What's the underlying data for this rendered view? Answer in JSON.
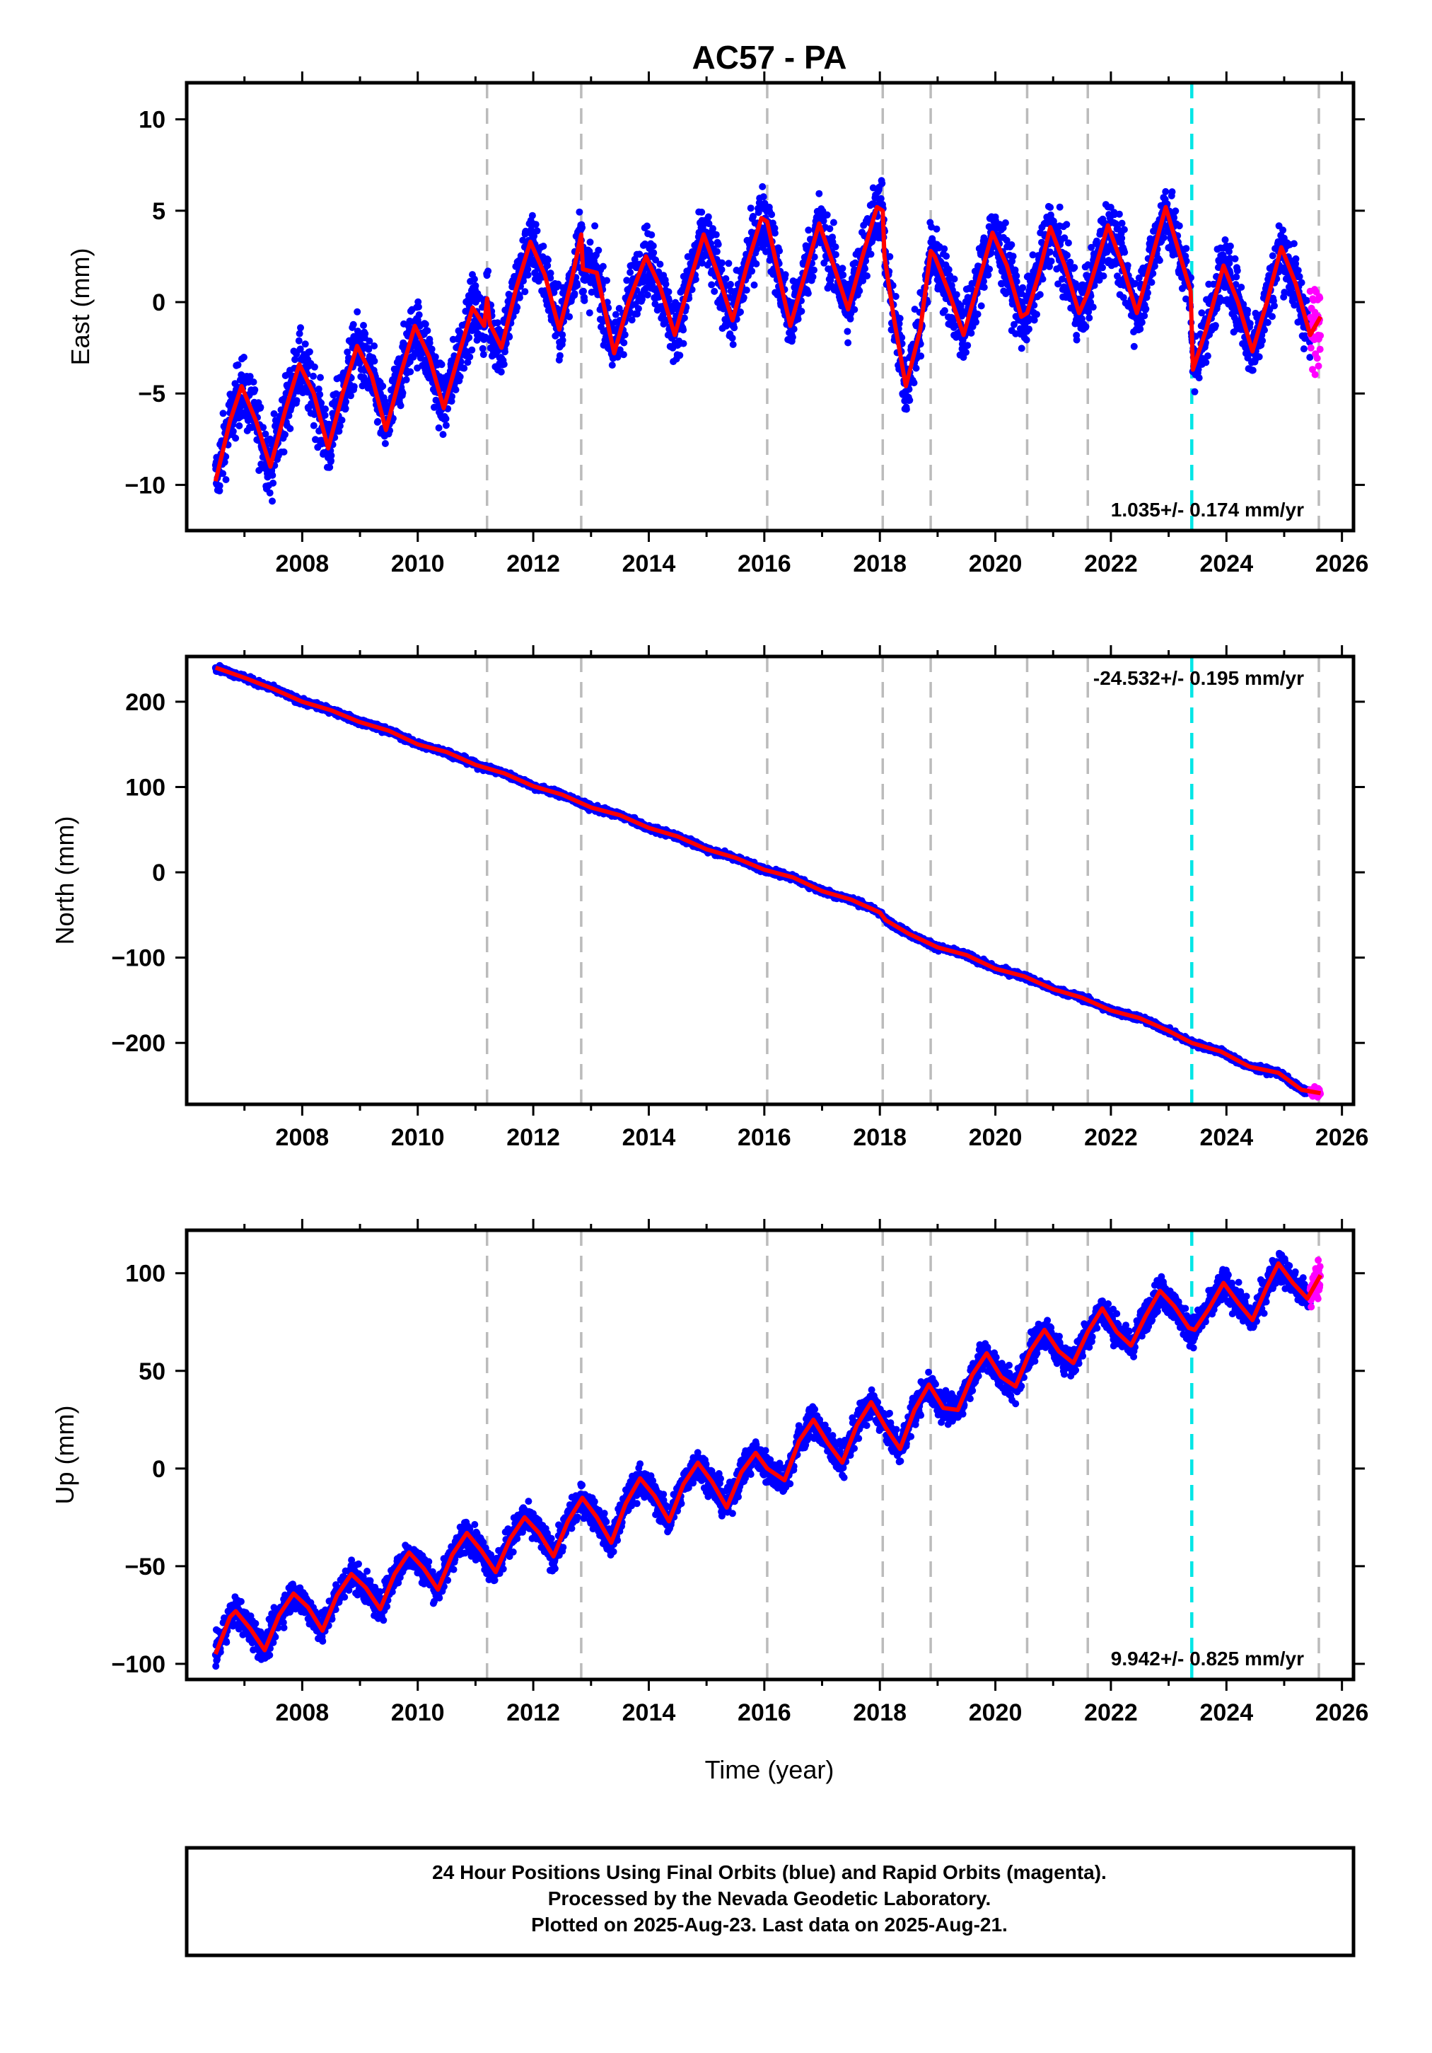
{
  "title": "AC57 - PA",
  "xlabel": "Time (year)",
  "x_ticks": [
    "2008",
    "2010",
    "2012",
    "2014",
    "2016",
    "2018",
    "2020",
    "2022",
    "2024",
    "2026"
  ],
  "colors": {
    "final_orbit_points": "#0000ff",
    "rapid_orbit_points": "#ff00ff",
    "model_fit": "#ff0000",
    "equipment_change": "#bbbbbb",
    "earthquake_offset": "#00e6e6"
  },
  "footer": {
    "line1": "24 Hour Positions Using Final Orbits (blue) and Rapid Orbits (magenta).",
    "line2": "Processed by the Nevada Geodetic Laboratory.",
    "line3": "Plotted on 2025-Aug-23. Last data on 2025-Aug-21."
  },
  "chart_data": [
    {
      "type": "scatter",
      "panel": "east",
      "ylabel": "East (mm)",
      "xlim": [
        2006.0,
        2026.2
      ],
      "ylim": [
        -12.5,
        12
      ],
      "y_ticks": [
        "−10",
        "−5",
        "0",
        "5",
        "10"
      ],
      "y_tick_values": [
        -10,
        -5,
        0,
        5,
        10
      ],
      "rate_label": "1.035+/- 0.174 mm/yr",
      "rate_position": "bottom-right",
      "grid": false,
      "data_span": [
        2006.5,
        2025.63
      ],
      "rapid_span": [
        2025.45,
        2025.63
      ],
      "equipment_change_years": [
        2011.2,
        2012.83,
        2016.05,
        2018.05,
        2018.88,
        2020.55,
        2021.6,
        2025.6
      ],
      "earthquake_years": [
        2023.4
      ],
      "model_curve": [
        [
          2006.5,
          -9.8
        ],
        [
          2006.75,
          -6.5
        ],
        [
          2006.95,
          -4.6
        ],
        [
          2007.2,
          -6.5
        ],
        [
          2007.45,
          -9.0
        ],
        [
          2007.7,
          -6.0
        ],
        [
          2007.95,
          -3.4
        ],
        [
          2008.2,
          -5.0
        ],
        [
          2008.45,
          -8.0
        ],
        [
          2008.7,
          -5.0
        ],
        [
          2008.95,
          -2.4
        ],
        [
          2009.2,
          -4.0
        ],
        [
          2009.45,
          -7.0
        ],
        [
          2009.7,
          -4.0
        ],
        [
          2009.95,
          -1.3
        ],
        [
          2010.2,
          -3.0
        ],
        [
          2010.45,
          -5.8
        ],
        [
          2010.7,
          -3.0
        ],
        [
          2010.95,
          -0.3
        ],
        [
          2011.15,
          -1.3
        ],
        [
          2011.2,
          0.2
        ],
        [
          2011.25,
          -1.2
        ],
        [
          2011.45,
          -2.5
        ],
        [
          2011.7,
          0.7
        ],
        [
          2011.95,
          3.3
        ],
        [
          2012.2,
          1.5
        ],
        [
          2012.45,
          -1.5
        ],
        [
          2012.65,
          1.0
        ],
        [
          2012.83,
          3.7
        ],
        [
          2012.86,
          1.8
        ],
        [
          2013.1,
          1.6
        ],
        [
          2013.4,
          -2.8
        ],
        [
          2013.65,
          0.0
        ],
        [
          2013.95,
          2.5
        ],
        [
          2014.2,
          0.8
        ],
        [
          2014.45,
          -1.8
        ],
        [
          2014.7,
          1.0
        ],
        [
          2014.95,
          3.7
        ],
        [
          2015.2,
          1.5
        ],
        [
          2015.45,
          -1.0
        ],
        [
          2015.7,
          2.0
        ],
        [
          2015.95,
          4.6
        ],
        [
          2016.05,
          4.4
        ],
        [
          2016.25,
          1.5
        ],
        [
          2016.45,
          -1.3
        ],
        [
          2016.7,
          1.5
        ],
        [
          2016.95,
          4.3
        ],
        [
          2017.2,
          2.0
        ],
        [
          2017.45,
          -0.4
        ],
        [
          2017.7,
          2.5
        ],
        [
          2017.95,
          5.2
        ],
        [
          2018.05,
          5.0
        ],
        [
          2018.08,
          2.5
        ],
        [
          2018.25,
          -1.0
        ],
        [
          2018.45,
          -4.6
        ],
        [
          2018.7,
          -1.5
        ],
        [
          2018.88,
          2.8
        ],
        [
          2018.95,
          2.5
        ],
        [
          2019.2,
          0.5
        ],
        [
          2019.45,
          -1.8
        ],
        [
          2019.7,
          1.0
        ],
        [
          2019.95,
          3.8
        ],
        [
          2020.2,
          2.0
        ],
        [
          2020.45,
          -0.8
        ],
        [
          2020.55,
          -0.6
        ],
        [
          2020.75,
          1.5
        ],
        [
          2020.95,
          4.1
        ],
        [
          2021.2,
          2.0
        ],
        [
          2021.45,
          -0.6
        ],
        [
          2021.6,
          0.5
        ],
        [
          2021.95,
          4.2
        ],
        [
          2022.2,
          2.0
        ],
        [
          2022.45,
          -0.6
        ],
        [
          2022.7,
          2.3
        ],
        [
          2022.95,
          5.2
        ],
        [
          2023.2,
          2.5
        ],
        [
          2023.38,
          0.6
        ],
        [
          2023.42,
          -3.7
        ],
        [
          2023.65,
          -1.5
        ],
        [
          2023.95,
          2.0
        ],
        [
          2024.2,
          0.0
        ],
        [
          2024.45,
          -2.7
        ],
        [
          2024.7,
          0.0
        ],
        [
          2024.95,
          3.0
        ],
        [
          2025.2,
          1.0
        ],
        [
          2025.45,
          -1.8
        ],
        [
          2025.63,
          -0.8
        ]
      ]
    },
    {
      "type": "scatter",
      "panel": "north",
      "ylabel": "North (mm)",
      "xlim": [
        2006.0,
        2026.2
      ],
      "ylim": [
        -272,
        253
      ],
      "y_ticks": [
        "−200",
        "−100",
        "0",
        "100",
        "200"
      ],
      "y_tick_values": [
        -200,
        -100,
        0,
        100,
        200
      ],
      "rate_label": "-24.532+/- 0.195 mm/yr",
      "rate_position": "top-right",
      "grid": false,
      "data_span": [
        2006.5,
        2025.63
      ],
      "rapid_span": [
        2025.45,
        2025.63
      ],
      "equipment_change_years": [
        2011.2,
        2012.83,
        2016.05,
        2018.05,
        2018.88,
        2020.55,
        2021.6,
        2025.6
      ],
      "earthquake_years": [
        2023.4
      ],
      "model_curve": [
        [
          2006.5,
          240
        ],
        [
          2007.0,
          228
        ],
        [
          2007.5,
          215
        ],
        [
          2008.0,
          200
        ],
        [
          2008.5,
          190
        ],
        [
          2009.0,
          176
        ],
        [
          2009.5,
          166
        ],
        [
          2010.0,
          150
        ],
        [
          2010.5,
          141
        ],
        [
          2011.0,
          126
        ],
        [
          2011.5,
          116
        ],
        [
          2012.0,
          101
        ],
        [
          2012.5,
          91
        ],
        [
          2013.0,
          76
        ],
        [
          2013.5,
          67
        ],
        [
          2014.0,
          52
        ],
        [
          2014.5,
          42
        ],
        [
          2015.0,
          27
        ],
        [
          2015.5,
          17
        ],
        [
          2016.0,
          3
        ],
        [
          2016.5,
          -6
        ],
        [
          2017.0,
          -22
        ],
        [
          2017.5,
          -32
        ],
        [
          2018.0,
          -47
        ],
        [
          2018.1,
          -56
        ],
        [
          2018.5,
          -72
        ],
        [
          2019.0,
          -88
        ],
        [
          2019.5,
          -97
        ],
        [
          2020.0,
          -113
        ],
        [
          2020.5,
          -122
        ],
        [
          2021.0,
          -137
        ],
        [
          2021.5,
          -147
        ],
        [
          2022.0,
          -162
        ],
        [
          2022.5,
          -171
        ],
        [
          2023.0,
          -186
        ],
        [
          2023.4,
          -200
        ],
        [
          2023.9,
          -210
        ],
        [
          2024.4,
          -228
        ],
        [
          2024.9,
          -235
        ],
        [
          2025.3,
          -255
        ],
        [
          2025.63,
          -259
        ]
      ]
    },
    {
      "type": "scatter",
      "panel": "up",
      "ylabel": "Up (mm)",
      "xlim": [
        2006.0,
        2026.2
      ],
      "ylim": [
        -108,
        122
      ],
      "y_ticks": [
        "−100",
        "−50",
        "0",
        "50",
        "100"
      ],
      "y_tick_values": [
        -100,
        -50,
        0,
        50,
        100
      ],
      "rate_label": "9.942+/- 0.825 mm/yr",
      "rate_position": "bottom-right",
      "grid": false,
      "data_span": [
        2006.5,
        2025.63
      ],
      "rapid_span": [
        2025.45,
        2025.63
      ],
      "equipment_change_years": [
        2011.2,
        2012.83,
        2016.05,
        2018.05,
        2018.88,
        2020.55,
        2021.6,
        2025.6
      ],
      "earthquake_years": [
        2023.4
      ],
      "model_curve": [
        [
          2006.5,
          -95
        ],
        [
          2006.75,
          -76
        ],
        [
          2006.85,
          -73
        ],
        [
          2007.1,
          -82
        ],
        [
          2007.35,
          -93
        ],
        [
          2007.6,
          -75
        ],
        [
          2007.85,
          -64
        ],
        [
          2008.1,
          -71
        ],
        [
          2008.35,
          -83
        ],
        [
          2008.6,
          -65
        ],
        [
          2008.85,
          -54
        ],
        [
          2009.1,
          -61
        ],
        [
          2009.35,
          -72
        ],
        [
          2009.6,
          -54
        ],
        [
          2009.85,
          -43
        ],
        [
          2010.1,
          -51
        ],
        [
          2010.35,
          -62
        ],
        [
          2010.6,
          -44
        ],
        [
          2010.85,
          -33
        ],
        [
          2011.1,
          -42
        ],
        [
          2011.35,
          -53
        ],
        [
          2011.6,
          -36
        ],
        [
          2011.85,
          -25
        ],
        [
          2012.1,
          -33
        ],
        [
          2012.35,
          -45
        ],
        [
          2012.6,
          -27
        ],
        [
          2012.85,
          -15
        ],
        [
          2013.1,
          -25
        ],
        [
          2013.35,
          -38
        ],
        [
          2013.6,
          -18
        ],
        [
          2013.85,
          -5
        ],
        [
          2014.1,
          -14
        ],
        [
          2014.35,
          -27
        ],
        [
          2014.6,
          -8
        ],
        [
          2014.85,
          3
        ],
        [
          2015.1,
          -7
        ],
        [
          2015.35,
          -20
        ],
        [
          2015.6,
          -2
        ],
        [
          2015.85,
          8
        ],
        [
          2016.05,
          0
        ],
        [
          2016.35,
          -6
        ],
        [
          2016.6,
          14
        ],
        [
          2016.85,
          25
        ],
        [
          2017.1,
          13
        ],
        [
          2017.35,
          3
        ],
        [
          2017.6,
          22
        ],
        [
          2017.85,
          34
        ],
        [
          2018.1,
          21
        ],
        [
          2018.35,
          10
        ],
        [
          2018.6,
          30
        ],
        [
          2018.85,
          43
        ],
        [
          2019.1,
          31
        ],
        [
          2019.35,
          30
        ],
        [
          2019.6,
          48
        ],
        [
          2019.85,
          59
        ],
        [
          2020.1,
          47
        ],
        [
          2020.35,
          42
        ],
        [
          2020.6,
          60
        ],
        [
          2020.85,
          71
        ],
        [
          2021.1,
          60
        ],
        [
          2021.35,
          54
        ],
        [
          2021.6,
          70
        ],
        [
          2021.85,
          82
        ],
        [
          2022.1,
          70
        ],
        [
          2022.35,
          63
        ],
        [
          2022.6,
          78
        ],
        [
          2022.85,
          91
        ],
        [
          2023.1,
          83
        ],
        [
          2023.35,
          72
        ],
        [
          2023.45,
          71
        ],
        [
          2023.7,
          82
        ],
        [
          2023.95,
          95
        ],
        [
          2024.2,
          85
        ],
        [
          2024.45,
          76
        ],
        [
          2024.7,
          93
        ],
        [
          2024.9,
          105
        ],
        [
          2025.15,
          95
        ],
        [
          2025.4,
          87
        ],
        [
          2025.63,
          99
        ]
      ]
    }
  ]
}
